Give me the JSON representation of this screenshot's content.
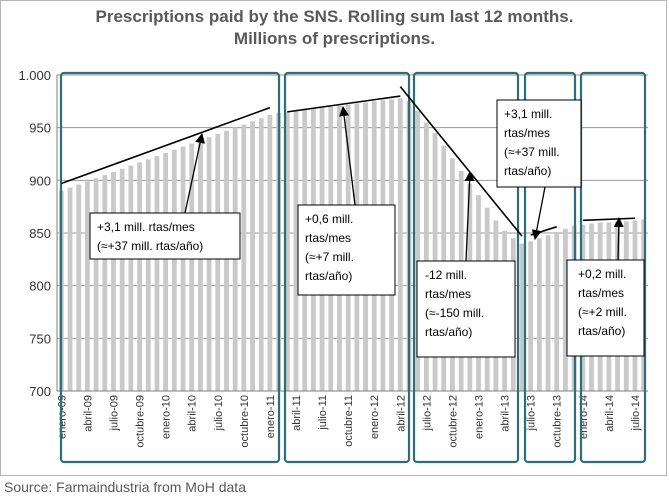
{
  "title": {
    "line1": "Prescriptions paid by the SNS. Rolling sum last 12 months.",
    "line2": "Millions of prescriptions."
  },
  "source": "Source: Farmaindustria from MoH data",
  "colors": {
    "bar": "#c9c9c9",
    "panel_border": "#2e6e7a",
    "grid": "#9a9a9a",
    "text": "#595959",
    "line": "#000000"
  },
  "chart_data": {
    "type": "bar",
    "ylim": [
      700,
      1000
    ],
    "yticks": [
      "700",
      "750",
      "800",
      "850",
      "900",
      "950",
      "1.000"
    ],
    "grid": true,
    "x_tick_labels": [
      "enero-09",
      "abril-09",
      "julio-09",
      "octubre-09",
      "enero-10",
      "abril-10",
      "julio-10",
      "octubre-10",
      "enero-11",
      "abril-11",
      "julio-11",
      "octubre-11",
      "enero-12",
      "abril-12",
      "julio-12",
      "octubre-12",
      "enero-13",
      "abril-13",
      "julio-13",
      "octubre-13",
      "enero-14",
      "abril-14",
      "julio-14"
    ],
    "categories": [
      "ene-09",
      "feb-09",
      "mar-09",
      "abr-09",
      "may-09",
      "jun-09",
      "jul-09",
      "ago-09",
      "sep-09",
      "oct-09",
      "nov-09",
      "dic-09",
      "ene-10",
      "feb-10",
      "mar-10",
      "abr-10",
      "may-10",
      "jun-10",
      "jul-10",
      "ago-10",
      "sep-10",
      "oct-10",
      "nov-10",
      "dic-10",
      "ene-11",
      "feb-11",
      "mar-11",
      "abr-11",
      "may-11",
      "jun-11",
      "jul-11",
      "ago-11",
      "sep-11",
      "oct-11",
      "nov-11",
      "dic-11",
      "ene-12",
      "feb-12",
      "mar-12",
      "abr-12",
      "may-12",
      "jun-12",
      "jul-12",
      "ago-12",
      "sep-12",
      "oct-12",
      "nov-12",
      "dic-12",
      "ene-13",
      "feb-13",
      "mar-13",
      "abr-13",
      "may-13",
      "jun-13",
      "jul-13",
      "ago-13",
      "sep-13",
      "oct-13",
      "nov-13",
      "dic-13",
      "ene-14",
      "feb-14",
      "mar-14",
      "abr-14",
      "may-14",
      "jun-14",
      "jul-14",
      "ago-14"
    ],
    "values": [
      890,
      893,
      896,
      899,
      902,
      905,
      908,
      911,
      914,
      917,
      920,
      923,
      926,
      929,
      932,
      935,
      938,
      941,
      944,
      947,
      950,
      953,
      956,
      959,
      962,
      964,
      965,
      966,
      967,
      968,
      969,
      970,
      971,
      972,
      973,
      974,
      975,
      976,
      977,
      978,
      975,
      966,
      955,
      945,
      933,
      921,
      909,
      897,
      886,
      874,
      862,
      852,
      845,
      840,
      842,
      845,
      848,
      851,
      854,
      857,
      858,
      859,
      860,
      860,
      861,
      861,
      862,
      863
    ],
    "trend_lines": [
      {
        "from": [
          "ene-09",
          897
        ],
        "to": [
          "ene-11",
          969
        ]
      },
      {
        "from": [
          "mar-11",
          965
        ],
        "to": [
          "abr-12",
          980
        ]
      },
      {
        "from": [
          "abr-12",
          989
        ],
        "to": [
          "jun-13",
          847
        ]
      },
      {
        "from": [
          "jul-13",
          848
        ],
        "to": [
          "oct-13",
          856
        ]
      },
      {
        "from": [
          "ene-14",
          862
        ],
        "to": [
          "jul-14",
          864
        ]
      }
    ],
    "annotations": [
      {
        "lines": [
          "+3,1 mill. rtas/mes",
          "(≈+37 mill. rtas/año)"
        ]
      },
      {
        "lines": [
          "+0,6 mill.",
          "rtas/mes",
          "(≈+7 mill.",
          "rtas/año)"
        ]
      },
      {
        "lines": [
          "-12 mill.",
          "rtas/mes",
          "(≈-150 mill.",
          "rtas/año)"
        ]
      },
      {
        "lines": [
          "+3,1 mill.",
          "rtas/mes",
          "(≈+37 mill.",
          "rtas/año)"
        ]
      },
      {
        "lines": [
          "+0,2 mill.",
          "rtas/mes",
          "(≈+2 mill.",
          "rtas/año)"
        ]
      }
    ]
  }
}
